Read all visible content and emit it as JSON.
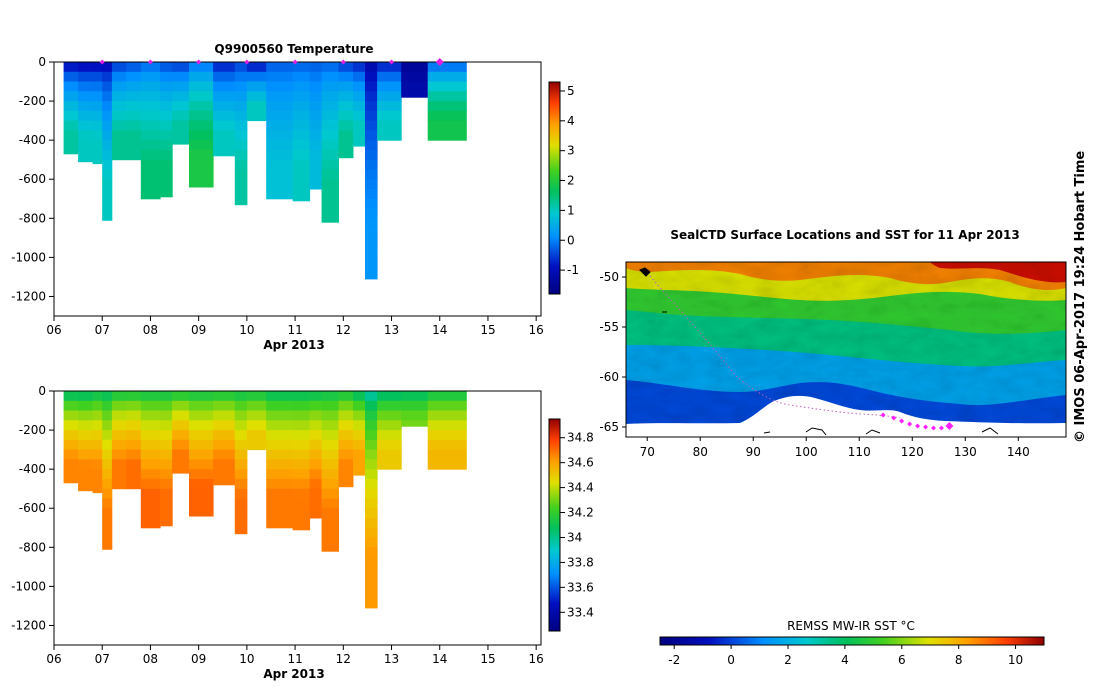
{
  "chart_data": [
    {
      "type": "heatmap",
      "id": "temperature_section",
      "title": "Q9900560  Temperature",
      "xlabel": "Apr 2013",
      "ylabel": "",
      "x_ticks": [
        "06",
        "07",
        "08",
        "09",
        "10",
        "11",
        "12",
        "13",
        "14",
        "15",
        "16"
      ],
      "xlim": [
        6,
        16.1
      ],
      "y_ticks": [
        "0",
        "-200",
        "-400",
        "-600",
        "-800",
        "-1000",
        "-1200"
      ],
      "ylim": [
        -1300,
        0
      ],
      "colorbar": {
        "ticks": [
          "5",
          "4",
          "3",
          "2",
          "1",
          "0",
          "-1"
        ],
        "range": [
          -1.8,
          5.3
        ]
      },
      "profile_markers_x": [
        7,
        8,
        9,
        10,
        11,
        12,
        13,
        14
      ],
      "profiles": [
        {
          "x0": 6.2,
          "x1": 6.5,
          "bottom": -470,
          "surface": -1.5,
          "deep": 1.2
        },
        {
          "x0": 6.5,
          "x1": 6.8,
          "bottom": -510,
          "surface": -1.5,
          "deep": 1.0
        },
        {
          "x0": 6.8,
          "x1": 7.0,
          "bottom": -520,
          "surface": -1.5,
          "deep": 1.0
        },
        {
          "x0": 7.0,
          "x1": 7.2,
          "bottom": -810,
          "surface": -1.4,
          "deep": 1.0
        },
        {
          "x0": 7.2,
          "x1": 7.5,
          "bottom": -500,
          "surface": -1.0,
          "deep": 1.3
        },
        {
          "x0": 7.5,
          "x1": 7.8,
          "bottom": -500,
          "surface": -0.8,
          "deep": 1.3
        },
        {
          "x0": 7.8,
          "x1": 8.2,
          "bottom": -700,
          "surface": -0.5,
          "deep": 1.5
        },
        {
          "x0": 8.2,
          "x1": 8.45,
          "bottom": -690,
          "surface": -0.8,
          "deep": 1.5
        },
        {
          "x0": 8.45,
          "x1": 8.8,
          "bottom": -420,
          "surface": -1.0,
          "deep": 1.2
        },
        {
          "x0": 8.8,
          "x1": 9.3,
          "bottom": -640,
          "surface": -0.5,
          "deep": 1.9
        },
        {
          "x0": 9.3,
          "x1": 9.75,
          "bottom": -480,
          "surface": -1.2,
          "deep": 1.0
        },
        {
          "x0": 9.75,
          "x1": 10.0,
          "bottom": -730,
          "surface": -0.8,
          "deep": 1.2
        },
        {
          "x0": 10.0,
          "x1": 10.4,
          "bottom": -300,
          "surface": -1.5,
          "deep": 1.0
        },
        {
          "x0": 10.4,
          "x1": 10.95,
          "bottom": -700,
          "surface": -0.5,
          "deep": 0.8
        },
        {
          "x0": 10.95,
          "x1": 11.3,
          "bottom": -710,
          "surface": -0.5,
          "deep": 1.0
        },
        {
          "x0": 11.3,
          "x1": 11.55,
          "bottom": -650,
          "surface": -0.5,
          "deep": 0.7
        },
        {
          "x0": 11.55,
          "x1": 11.9,
          "bottom": -820,
          "surface": -0.5,
          "deep": 1.3
        },
        {
          "x0": 11.9,
          "x1": 12.2,
          "bottom": -490,
          "surface": -1.0,
          "deep": 1.3
        },
        {
          "x0": 12.2,
          "x1": 12.45,
          "bottom": -430,
          "surface": -1.2,
          "deep": 1.0
        },
        {
          "x0": 12.45,
          "x1": 12.7,
          "bottom": -1110,
          "surface": -1.4,
          "deep": 0.2
        },
        {
          "x0": 12.7,
          "x1": 13.2,
          "bottom": -400,
          "surface": -1.3,
          "deep": 1.0
        },
        {
          "x0": 13.2,
          "x1": 13.75,
          "bottom": -180,
          "surface": -1.6,
          "deep": -1.2
        },
        {
          "x0": 13.75,
          "x1": 14.55,
          "bottom": -400,
          "surface": -0.8,
          "deep": 1.8
        }
      ]
    },
    {
      "type": "heatmap",
      "id": "salinity_section",
      "title": "",
      "xlabel": "Apr 2013",
      "ylabel": "",
      "x_ticks": [
        "06",
        "07",
        "08",
        "09",
        "10",
        "11",
        "12",
        "13",
        "14",
        "15",
        "16"
      ],
      "xlim": [
        6,
        16.1
      ],
      "y_ticks": [
        "0",
        "-200",
        "-400",
        "-600",
        "-800",
        "-1000",
        "-1200"
      ],
      "ylim": [
        -1300,
        0
      ],
      "colorbar": {
        "ticks": [
          "34.8",
          "34.6",
          "34.4",
          "34.2",
          "34",
          "33.8",
          "33.6",
          "33.4"
        ],
        "range": [
          33.25,
          34.95
        ]
      },
      "profiles": [
        {
          "x0": 6.2,
          "x1": 6.5,
          "bottom": -470,
          "surface": 33.9,
          "deep": 34.66
        },
        {
          "x0": 6.5,
          "x1": 6.8,
          "bottom": -510,
          "surface": 33.9,
          "deep": 34.66
        },
        {
          "x0": 6.8,
          "x1": 7.0,
          "bottom": -520,
          "surface": 33.95,
          "deep": 34.66
        },
        {
          "x0": 7.0,
          "x1": 7.2,
          "bottom": -810,
          "surface": 33.95,
          "deep": 34.68
        },
        {
          "x0": 7.2,
          "x1": 7.5,
          "bottom": -500,
          "surface": 34.0,
          "deep": 34.68
        },
        {
          "x0": 7.5,
          "x1": 7.8,
          "bottom": -500,
          "surface": 34.0,
          "deep": 34.7
        },
        {
          "x0": 7.8,
          "x1": 8.2,
          "bottom": -700,
          "surface": 34.0,
          "deep": 34.72
        },
        {
          "x0": 8.2,
          "x1": 8.45,
          "bottom": -690,
          "surface": 34.0,
          "deep": 34.7
        },
        {
          "x0": 8.45,
          "x1": 8.8,
          "bottom": -420,
          "surface": 34.0,
          "deep": 34.68
        },
        {
          "x0": 8.8,
          "x1": 9.3,
          "bottom": -640,
          "surface": 34.0,
          "deep": 34.72
        },
        {
          "x0": 9.3,
          "x1": 9.75,
          "bottom": -480,
          "surface": 34.0,
          "deep": 34.68
        },
        {
          "x0": 9.75,
          "x1": 10.0,
          "bottom": -730,
          "surface": 34.0,
          "deep": 34.7
        },
        {
          "x0": 10.0,
          "x1": 10.4,
          "bottom": -300,
          "surface": 34.0,
          "deep": 34.5
        },
        {
          "x0": 10.4,
          "x1": 10.95,
          "bottom": -700,
          "surface": 33.95,
          "deep": 34.68
        },
        {
          "x0": 10.95,
          "x1": 11.3,
          "bottom": -710,
          "surface": 33.95,
          "deep": 34.68
        },
        {
          "x0": 11.3,
          "x1": 11.55,
          "bottom": -650,
          "surface": 33.95,
          "deep": 34.7
        },
        {
          "x0": 11.55,
          "x1": 11.9,
          "bottom": -820,
          "surface": 34.0,
          "deep": 34.68
        },
        {
          "x0": 11.9,
          "x1": 12.2,
          "bottom": -490,
          "surface": 34.0,
          "deep": 34.66
        },
        {
          "x0": 12.2,
          "x1": 12.45,
          "bottom": -430,
          "surface": 33.9,
          "deep": 34.6
        },
        {
          "x0": 12.45,
          "x1": 12.7,
          "bottom": -1110,
          "surface": 33.85,
          "deep": 34.62
        },
        {
          "x0": 12.7,
          "x1": 13.2,
          "bottom": -400,
          "surface": 33.9,
          "deep": 34.5
        },
        {
          "x0": 13.2,
          "x1": 13.75,
          "bottom": -180,
          "surface": 33.95,
          "deep": 34.3
        },
        {
          "x0": 13.75,
          "x1": 14.55,
          "bottom": -400,
          "surface": 34.0,
          "deep": 34.55
        }
      ]
    },
    {
      "type": "heatmap",
      "id": "sst_map",
      "title": "SealCTD Surface Locations and SST for 11 Apr 2013",
      "xlabel": "",
      "ylabel": "",
      "x_ticks": [
        "70",
        "80",
        "90",
        "100",
        "110",
        "120",
        "130",
        "140"
      ],
      "xlim": [
        66,
        149
      ],
      "y_ticks": [
        "-50",
        "-55",
        "-60",
        "-65"
      ],
      "ylim": [
        -66,
        -48.5
      ],
      "colorbar": {
        "label": "REMSS MW-IR SST °C",
        "ticks": [
          "-2",
          "0",
          "2",
          "4",
          "6",
          "8",
          "10"
        ],
        "range": [
          -2.5,
          11
        ]
      },
      "track_points": [
        [
          114.5,
          -63.8
        ],
        [
          116.5,
          -64.1
        ],
        [
          118.0,
          -64.4
        ],
        [
          119.5,
          -64.7
        ],
        [
          121.0,
          -64.9
        ],
        [
          122.5,
          -65.0
        ],
        [
          124.0,
          -65.1
        ],
        [
          125.5,
          -65.1
        ],
        [
          127.0,
          -64.9
        ]
      ],
      "credit": "© IMOS 06-Apr-2017 19:24 Hobart Time"
    }
  ]
}
